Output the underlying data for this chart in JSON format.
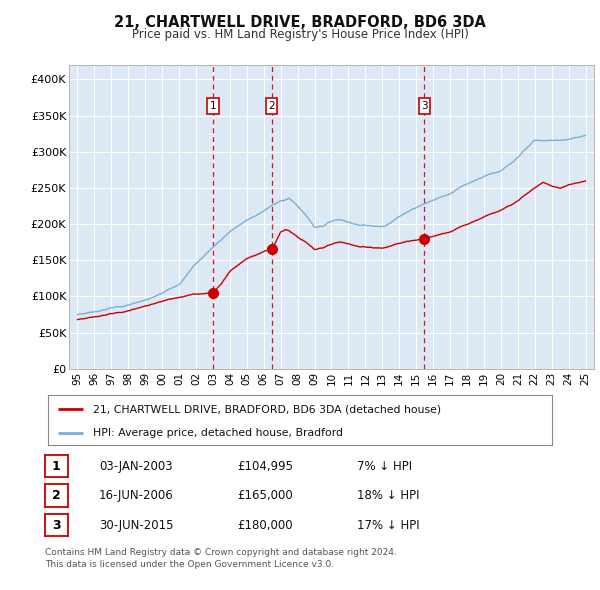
{
  "title": "21, CHARTWELL DRIVE, BRADFORD, BD6 3DA",
  "subtitle": "Price paid vs. HM Land Registry's House Price Index (HPI)",
  "background_color": "#ffffff",
  "plot_bg_color": "#dce9f5",
  "grid_color": "#ffffff",
  "hpi_color": "#7bafd4",
  "price_color": "#cc0000",
  "vline_color": "#cc0000",
  "purchases": [
    {
      "price": 104995,
      "label": "1",
      "x": 2003.01
    },
    {
      "price": 165000,
      "label": "2",
      "x": 2006.46
    },
    {
      "price": 180000,
      "label": "3",
      "x": 2015.49
    }
  ],
  "purchase_info": [
    {
      "num": "1",
      "date": "03-JAN-2003",
      "price": "£104,995",
      "note": "7% ↓ HPI"
    },
    {
      "num": "2",
      "date": "16-JUN-2006",
      "price": "£165,000",
      "note": "18% ↓ HPI"
    },
    {
      "num": "3",
      "date": "30-JUN-2015",
      "price": "£180,000",
      "note": "17% ↓ HPI"
    }
  ],
  "legend_entries": [
    "21, CHARTWELL DRIVE, BRADFORD, BD6 3DA (detached house)",
    "HPI: Average price, detached house, Bradford"
  ],
  "footer": "Contains HM Land Registry data © Crown copyright and database right 2024.\nThis data is licensed under the Open Government Licence v3.0.",
  "ylim": [
    0,
    420000
  ],
  "yticks": [
    0,
    50000,
    100000,
    150000,
    200000,
    250000,
    300000,
    350000,
    400000
  ],
  "ytick_labels": [
    "£0",
    "£50K",
    "£100K",
    "£150K",
    "£200K",
    "£250K",
    "£300K",
    "£350K",
    "£400K"
  ],
  "xlim": [
    1994.5,
    2025.5
  ],
  "xticks": [
    1995,
    1996,
    1997,
    1998,
    1999,
    2000,
    2001,
    2002,
    2003,
    2004,
    2005,
    2006,
    2007,
    2008,
    2009,
    2010,
    2011,
    2012,
    2013,
    2014,
    2015,
    2016,
    2017,
    2018,
    2019,
    2020,
    2021,
    2022,
    2023,
    2024,
    2025
  ]
}
